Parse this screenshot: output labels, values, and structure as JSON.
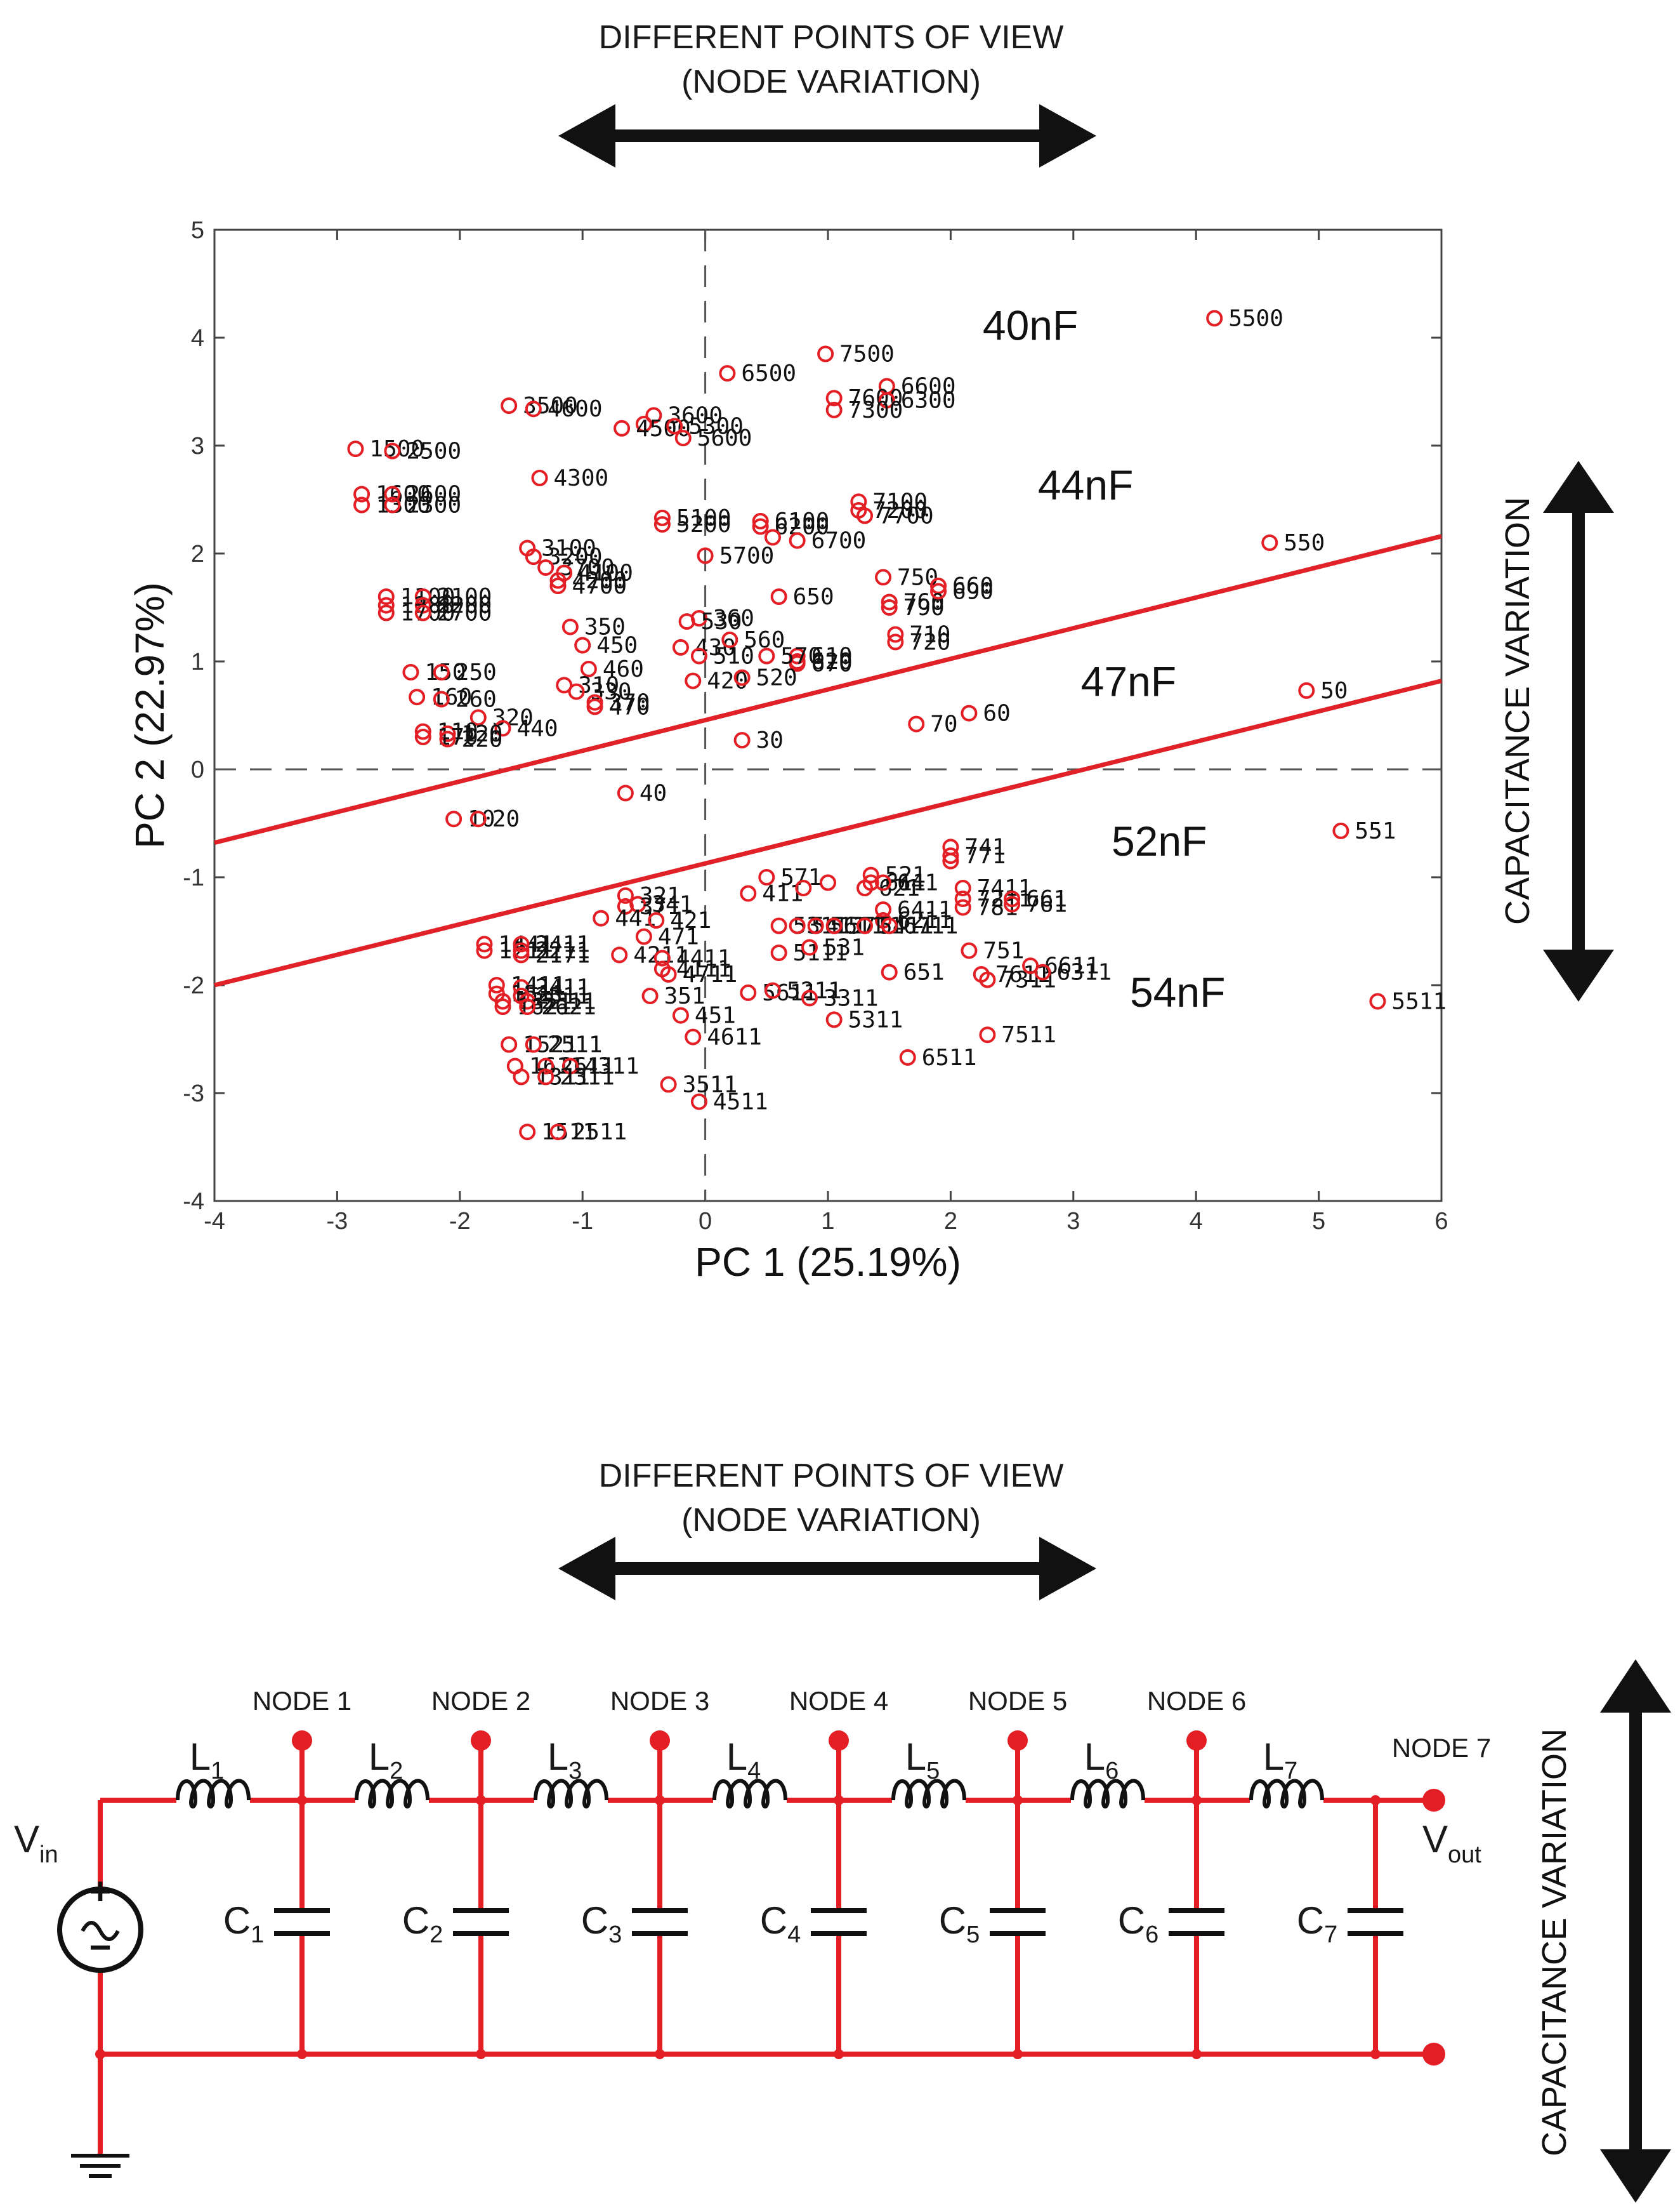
{
  "top_banner": {
    "line1": "DIFFERENT POINTS OF VIEW",
    "line2": "(NODE VARIATION)"
  },
  "bottom_banner": {
    "line1": "DIFFERENT POINTS OF VIEW",
    "line2": "(NODE VARIATION)"
  },
  "side_label": "CAPACITANCE VARIATION",
  "side_label_bottom": "CAPACITANCE VARIATION",
  "colors": {
    "marker": "#e31e24",
    "line": "#e02127",
    "axis": "#444444",
    "arrow": "#111111",
    "circuit": "#e31e24"
  },
  "chart_data": {
    "type": "scatter",
    "xlabel": "PC 1 (25.19%)",
    "ylabel": "PC 2 (22.97%)",
    "xlim": [
      -4,
      6
    ],
    "ylim": [
      -4,
      5
    ],
    "xticks": [
      "-4",
      "-3",
      "-2",
      "-1",
      "0",
      "1",
      "2",
      "3",
      "4",
      "5",
      "6"
    ],
    "yticks": [
      "-4",
      "-3",
      "-2",
      "-1",
      "0",
      "1",
      "2",
      "3",
      "4",
      "5"
    ],
    "reference_lines": [
      {
        "type": "dashed",
        "x": 0
      },
      {
        "type": "dashed",
        "y": 0
      }
    ],
    "boundaries": [
      {
        "from": [
          -4,
          -0.68
        ],
        "to": [
          6,
          2.16
        ]
      },
      {
        "from": [
          -4,
          -2.0
        ],
        "to": [
          6,
          0.82
        ]
      }
    ],
    "regions": [
      {
        "label": "40nF",
        "x": 2.65,
        "y": 3.98
      },
      {
        "label": "44nF",
        "x": 3.1,
        "y": 2.5
      },
      {
        "label": "47nF",
        "x": 3.45,
        "y": 0.68
      },
      {
        "label": "52nF",
        "x": 3.7,
        "y": -0.8
      },
      {
        "label": "54nF",
        "x": 3.85,
        "y": -2.2
      }
    ],
    "points": [
      {
        "x": 4.15,
        "y": 4.18,
        "label": "5500"
      },
      {
        "x": 0.98,
        "y": 3.85,
        "label": "7500"
      },
      {
        "x": 0.18,
        "y": 3.67,
        "label": "6500"
      },
      {
        "x": 1.48,
        "y": 3.55,
        "label": "6600"
      },
      {
        "x": 1.05,
        "y": 3.44,
        "label": "7600"
      },
      {
        "x": 1.48,
        "y": 3.42,
        "label": "6300"
      },
      {
        "x": 1.05,
        "y": 3.33,
        "label": "7300"
      },
      {
        "x": -1.6,
        "y": 3.37,
        "label": "3500"
      },
      {
        "x": -1.4,
        "y": 3.34,
        "label": "4600"
      },
      {
        "x": -0.42,
        "y": 3.28,
        "label": "3600"
      },
      {
        "x": -0.5,
        "y": 3.2,
        "label": ""
      },
      {
        "x": -0.68,
        "y": 3.16,
        "label": "4500"
      },
      {
        "x": -0.25,
        "y": 3.18,
        "label": "5300"
      },
      {
        "x": -0.18,
        "y": 3.07,
        "label": "5600"
      },
      {
        "x": -2.85,
        "y": 2.97,
        "label": "1500"
      },
      {
        "x": -2.55,
        "y": 2.95,
        "label": "2500"
      },
      {
        "x": -1.35,
        "y": 2.7,
        "label": "4300"
      },
      {
        "x": -2.8,
        "y": 2.55,
        "label": "1600"
      },
      {
        "x": -2.8,
        "y": 2.45,
        "label": "1300"
      },
      {
        "x": -2.55,
        "y": 2.55,
        "label": "2600"
      },
      {
        "x": -2.55,
        "y": 2.45,
        "label": "2300"
      },
      {
        "x": -0.35,
        "y": 2.33,
        "label": "5100"
      },
      {
        "x": -0.35,
        "y": 2.27,
        "label": "5200"
      },
      {
        "x": 0.45,
        "y": 2.3,
        "label": "6100"
      },
      {
        "x": 0.45,
        "y": 2.25,
        "label": "6200"
      },
      {
        "x": 0.55,
        "y": 2.15,
        "label": ""
      },
      {
        "x": 1.25,
        "y": 2.48,
        "label": "7100"
      },
      {
        "x": 1.25,
        "y": 2.4,
        "label": "7200"
      },
      {
        "x": 1.3,
        "y": 2.35,
        "label": "7700"
      },
      {
        "x": 0.75,
        "y": 2.12,
        "label": "6700"
      },
      {
        "x": 4.6,
        "y": 2.1,
        "label": "550"
      },
      {
        "x": -1.45,
        "y": 2.05,
        "label": "3100"
      },
      {
        "x": -1.4,
        "y": 1.97,
        "label": "3200"
      },
      {
        "x": -1.3,
        "y": 1.87,
        "label": "3700"
      },
      {
        "x": -1.15,
        "y": 1.82,
        "label": "4100"
      },
      {
        "x": -1.2,
        "y": 1.75,
        "label": "4200"
      },
      {
        "x": -1.2,
        "y": 1.7,
        "label": "4700"
      },
      {
        "x": 0.0,
        "y": 1.98,
        "label": "5700"
      },
      {
        "x": -2.6,
        "y": 1.6,
        "label": "1100"
      },
      {
        "x": -2.3,
        "y": 1.6,
        "label": "2100"
      },
      {
        "x": -2.6,
        "y": 1.52,
        "label": "1200"
      },
      {
        "x": -2.3,
        "y": 1.52,
        "label": "2200"
      },
      {
        "x": -2.6,
        "y": 1.45,
        "label": "1700"
      },
      {
        "x": -2.3,
        "y": 1.45,
        "label": "2700"
      },
      {
        "x": 1.45,
        "y": 1.78,
        "label": "750"
      },
      {
        "x": 0.6,
        "y": 1.6,
        "label": "650"
      },
      {
        "x": 1.9,
        "y": 1.7,
        "label": "660"
      },
      {
        "x": 1.5,
        "y": 1.55,
        "label": "760"
      },
      {
        "x": 1.5,
        "y": 1.5,
        "label": "790"
      },
      {
        "x": 1.9,
        "y": 1.65,
        "label": "690"
      },
      {
        "x": -1.1,
        "y": 1.32,
        "label": "350"
      },
      {
        "x": -0.05,
        "y": 1.4,
        "label": "360"
      },
      {
        "x": -0.15,
        "y": 1.37,
        "label": "530"
      },
      {
        "x": -1.0,
        "y": 1.15,
        "label": "450"
      },
      {
        "x": -0.2,
        "y": 1.13,
        "label": "430"
      },
      {
        "x": 0.2,
        "y": 1.2,
        "label": "560"
      },
      {
        "x": -0.05,
        "y": 1.05,
        "label": "510"
      },
      {
        "x": 0.75,
        "y": 1.05,
        "label": "610"
      },
      {
        "x": 0.75,
        "y": 1.0,
        "label": "620"
      },
      {
        "x": 0.75,
        "y": 0.98,
        "label": "670"
      },
      {
        "x": 1.55,
        "y": 1.25,
        "label": "710"
      },
      {
        "x": 1.55,
        "y": 1.18,
        "label": "720"
      },
      {
        "x": -0.95,
        "y": 0.93,
        "label": "460"
      },
      {
        "x": -1.15,
        "y": 0.78,
        "label": "310"
      },
      {
        "x": -1.05,
        "y": 0.72,
        "label": "330"
      },
      {
        "x": -0.9,
        "y": 0.62,
        "label": "370"
      },
      {
        "x": -0.9,
        "y": 0.58,
        "label": "470"
      },
      {
        "x": -0.1,
        "y": 0.82,
        "label": "420"
      },
      {
        "x": 0.3,
        "y": 0.85,
        "label": "520"
      },
      {
        "x": 0.5,
        "y": 1.05,
        "label": "570"
      },
      {
        "x": 4.9,
        "y": 0.73,
        "label": "50"
      },
      {
        "x": 2.15,
        "y": 0.52,
        "label": "60"
      },
      {
        "x": 1.72,
        "y": 0.42,
        "label": "70"
      },
      {
        "x": -2.4,
        "y": 0.9,
        "label": "150"
      },
      {
        "x": -2.15,
        "y": 0.9,
        "label": "250"
      },
      {
        "x": -2.35,
        "y": 0.67,
        "label": "160"
      },
      {
        "x": -2.15,
        "y": 0.65,
        "label": "260"
      },
      {
        "x": -1.85,
        "y": 0.48,
        "label": "320"
      },
      {
        "x": -1.65,
        "y": 0.38,
        "label": "440"
      },
      {
        "x": -2.3,
        "y": 0.35,
        "label": "110"
      },
      {
        "x": -2.1,
        "y": 0.33,
        "label": "120"
      },
      {
        "x": -2.3,
        "y": 0.3,
        "label": "170"
      },
      {
        "x": -2.1,
        "y": 0.28,
        "label": "220"
      },
      {
        "x": 0.3,
        "y": 0.27,
        "label": "30"
      },
      {
        "x": -0.65,
        "y": -0.22,
        "label": "40"
      },
      {
        "x": -2.05,
        "y": -0.46,
        "label": "10"
      },
      {
        "x": -1.85,
        "y": -0.46,
        "label": "20"
      },
      {
        "x": 5.18,
        "y": -0.57,
        "label": "551"
      },
      {
        "x": 2.0,
        "y": -0.72,
        "label": "741"
      },
      {
        "x": 2.0,
        "y": -0.8,
        "label": "771"
      },
      {
        "x": 2.0,
        "y": -0.85,
        "label": ""
      },
      {
        "x": 0.5,
        "y": -1.0,
        "label": "571"
      },
      {
        "x": 1.0,
        "y": -1.05,
        "label": ""
      },
      {
        "x": 1.35,
        "y": -0.98,
        "label": "521"
      },
      {
        "x": 1.35,
        "y": -1.05,
        "label": "611"
      },
      {
        "x": 1.3,
        "y": -1.1,
        "label": "621"
      },
      {
        "x": 1.45,
        "y": -1.05,
        "label": "641"
      },
      {
        "x": 0.35,
        "y": -1.15,
        "label": "411"
      },
      {
        "x": 0.8,
        "y": -1.1,
        "label": ""
      },
      {
        "x": 2.1,
        "y": -1.1,
        "label": "7411"
      },
      {
        "x": 2.1,
        "y": -1.2,
        "label": "7211"
      },
      {
        "x": 2.1,
        "y": -1.28,
        "label": "781"
      },
      {
        "x": 2.5,
        "y": -1.2,
        "label": "661"
      },
      {
        "x": 2.5,
        "y": -1.25,
        "label": "761"
      },
      {
        "x": -0.65,
        "y": -1.17,
        "label": "321"
      },
      {
        "x": -0.55,
        "y": -1.25,
        "label": "341"
      },
      {
        "x": -0.65,
        "y": -1.27,
        "label": "371"
      },
      {
        "x": 1.45,
        "y": -1.3,
        "label": "6411"
      },
      {
        "x": 1.45,
        "y": -1.4,
        "label": "6211"
      },
      {
        "x": -0.85,
        "y": -1.38,
        "label": "441"
      },
      {
        "x": -0.4,
        "y": -1.4,
        "label": "421"
      },
      {
        "x": -0.5,
        "y": -1.55,
        "label": "471"
      },
      {
        "x": 0.6,
        "y": -1.45,
        "label": "5311"
      },
      {
        "x": 0.75,
        "y": -1.45,
        "label": "5411"
      },
      {
        "x": 0.9,
        "y": -1.45,
        "label": "5611"
      },
      {
        "x": 1.05,
        "y": -1.45,
        "label": "5711"
      },
      {
        "x": 1.3,
        "y": -1.45,
        "label": "5411"
      },
      {
        "x": 1.5,
        "y": -1.45,
        "label": "6711"
      },
      {
        "x": -1.8,
        "y": -1.62,
        "label": "1441"
      },
      {
        "x": -1.8,
        "y": -1.68,
        "label": "1211"
      },
      {
        "x": -1.5,
        "y": -1.62,
        "label": "2411"
      },
      {
        "x": -1.5,
        "y": -1.68,
        "label": "2211"
      },
      {
        "x": -1.5,
        "y": -1.72,
        "label": "2171"
      },
      {
        "x": -0.7,
        "y": -1.72,
        "label": "4211"
      },
      {
        "x": -0.35,
        "y": -1.75,
        "label": "4411"
      },
      {
        "x": -0.35,
        "y": -1.85,
        "label": "4111"
      },
      {
        "x": -0.3,
        "y": -1.9,
        "label": "4711"
      },
      {
        "x": 0.6,
        "y": -1.7,
        "label": "5111"
      },
      {
        "x": 0.85,
        "y": -1.65,
        "label": "531"
      },
      {
        "x": 2.15,
        "y": -1.68,
        "label": "751"
      },
      {
        "x": 1.5,
        "y": -1.88,
        "label": "651"
      },
      {
        "x": 2.25,
        "y": -1.9,
        "label": "7611"
      },
      {
        "x": 2.3,
        "y": -1.95,
        "label": "7311"
      },
      {
        "x": 2.65,
        "y": -1.82,
        "label": "6611"
      },
      {
        "x": 2.75,
        "y": -1.88,
        "label": "6311"
      },
      {
        "x": -1.7,
        "y": -2.0,
        "label": "1411"
      },
      {
        "x": -1.5,
        "y": -2.02,
        "label": "2411"
      },
      {
        "x": -1.7,
        "y": -2.08,
        "label": "1511"
      },
      {
        "x": -1.5,
        "y": -2.1,
        "label": "2511"
      },
      {
        "x": -1.65,
        "y": -2.15,
        "label": "1311"
      },
      {
        "x": -1.45,
        "y": -2.15,
        "label": "2311"
      },
      {
        "x": -1.65,
        "y": -2.2,
        "label": "1621"
      },
      {
        "x": -1.45,
        "y": -2.2,
        "label": "2621"
      },
      {
        "x": -0.45,
        "y": -2.1,
        "label": "351"
      },
      {
        "x": 0.35,
        "y": -2.07,
        "label": "5611"
      },
      {
        "x": 0.55,
        "y": -2.05,
        "label": "5211"
      },
      {
        "x": 0.85,
        "y": -2.12,
        "label": "3311"
      },
      {
        "x": 5.48,
        "y": -2.15,
        "label": "5511"
      },
      {
        "x": 1.05,
        "y": -2.32,
        "label": "5311"
      },
      {
        "x": -0.2,
        "y": -2.28,
        "label": "451"
      },
      {
        "x": -0.1,
        "y": -2.48,
        "label": "4611"
      },
      {
        "x": 2.3,
        "y": -2.46,
        "label": "7511"
      },
      {
        "x": -1.6,
        "y": -2.55,
        "label": "1521"
      },
      {
        "x": -1.4,
        "y": -2.55,
        "label": "2511"
      },
      {
        "x": 1.65,
        "y": -2.67,
        "label": "6511"
      },
      {
        "x": -1.55,
        "y": -2.75,
        "label": "1611"
      },
      {
        "x": -1.3,
        "y": -2.75,
        "label": "2611"
      },
      {
        "x": -1.1,
        "y": -2.75,
        "label": "4311"
      },
      {
        "x": -1.5,
        "y": -2.85,
        "label": "1311"
      },
      {
        "x": -1.3,
        "y": -2.85,
        "label": "2311"
      },
      {
        "x": -0.3,
        "y": -2.92,
        "label": "3511"
      },
      {
        "x": -0.05,
        "y": -3.08,
        "label": "4511"
      },
      {
        "x": -1.45,
        "y": -3.36,
        "label": "1511"
      },
      {
        "x": -1.2,
        "y": -3.36,
        "label": "2511"
      }
    ]
  },
  "circuit": {
    "source": {
      "label": "V",
      "sub": "in"
    },
    "output": {
      "label": "V",
      "sub": "out"
    },
    "nodes": [
      "NODE 1",
      "NODE 2",
      "NODE 3",
      "NODE 4",
      "NODE 5",
      "NODE 6",
      "NODE 7"
    ],
    "inductors": [
      {
        "label": "L",
        "sub": "1"
      },
      {
        "label": "L",
        "sub": "2"
      },
      {
        "label": "L",
        "sub": "3"
      },
      {
        "label": "L",
        "sub": "4"
      },
      {
        "label": "L",
        "sub": "5"
      },
      {
        "label": "L",
        "sub": "6"
      },
      {
        "label": "L",
        "sub": "7"
      }
    ],
    "capacitors": [
      {
        "label": "C",
        "sub": "1"
      },
      {
        "label": "C",
        "sub": "2"
      },
      {
        "label": "C",
        "sub": "3"
      },
      {
        "label": "C",
        "sub": "4"
      },
      {
        "label": "C",
        "sub": "5"
      },
      {
        "label": "C",
        "sub": "6"
      },
      {
        "label": "C",
        "sub": "7"
      }
    ]
  }
}
